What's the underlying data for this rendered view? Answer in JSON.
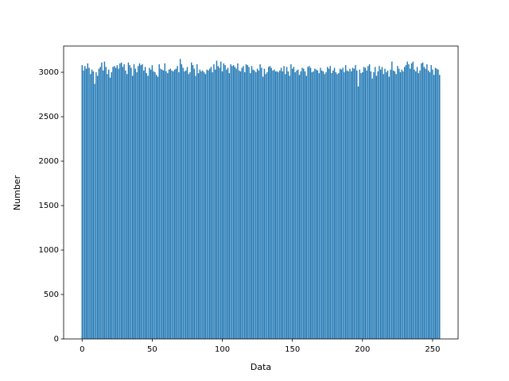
{
  "chart_data": {
    "type": "bar",
    "xlabel": "Data",
    "ylabel": "Number",
    "color": "#1f77b4",
    "x": [
      0,
      1,
      2,
      3,
      4,
      5,
      6,
      7,
      8,
      9,
      10,
      11,
      12,
      13,
      14,
      15,
      16,
      17,
      18,
      19,
      20,
      21,
      22,
      23,
      24,
      25,
      26,
      27,
      28,
      29,
      30,
      31,
      32,
      33,
      34,
      35,
      36,
      37,
      38,
      39,
      40,
      41,
      42,
      43,
      44,
      45,
      46,
      47,
      48,
      49,
      50,
      51,
      52,
      53,
      54,
      55,
      56,
      57,
      58,
      59,
      60,
      61,
      62,
      63,
      64,
      65,
      66,
      67,
      68,
      69,
      70,
      71,
      72,
      73,
      74,
      75,
      76,
      77,
      78,
      79,
      80,
      81,
      82,
      83,
      84,
      85,
      86,
      87,
      88,
      89,
      90,
      91,
      92,
      93,
      94,
      95,
      96,
      97,
      98,
      99,
      100,
      101,
      102,
      103,
      104,
      105,
      106,
      107,
      108,
      109,
      110,
      111,
      112,
      113,
      114,
      115,
      116,
      117,
      118,
      119,
      120,
      121,
      122,
      123,
      124,
      125,
      126,
      127,
      128,
      129,
      130,
      131,
      132,
      133,
      134,
      135,
      136,
      137,
      138,
      139,
      140,
      141,
      142,
      143,
      144,
      145,
      146,
      147,
      148,
      149,
      150,
      151,
      152,
      153,
      154,
      155,
      156,
      157,
      158,
      159,
      160,
      161,
      162,
      163,
      164,
      165,
      166,
      167,
      168,
      169,
      170,
      171,
      172,
      173,
      174,
      175,
      176,
      177,
      178,
      179,
      180,
      181,
      182,
      183,
      184,
      185,
      186,
      187,
      188,
      189,
      190,
      191,
      192,
      193,
      194,
      195,
      196,
      197,
      198,
      199,
      200,
      201,
      202,
      203,
      204,
      205,
      206,
      207,
      208,
      209,
      210,
      211,
      212,
      213,
      214,
      215,
      216,
      217,
      218,
      219,
      220,
      221,
      222,
      223,
      224,
      225,
      226,
      227,
      228,
      229,
      230,
      231,
      232,
      233,
      234,
      235,
      236,
      237,
      238,
      239,
      240,
      241,
      242,
      243,
      244,
      245,
      246,
      247,
      248,
      249,
      250,
      251,
      252,
      253,
      254,
      255
    ],
    "values": [
      3080,
      3020,
      3070,
      3040,
      3100,
      3050,
      2980,
      3030,
      3010,
      2870,
      3000,
      2960,
      3040,
      3060,
      3110,
      3020,
      3120,
      3060,
      2980,
      3030,
      2940,
      3000,
      3060,
      3070,
      3050,
      3080,
      3040,
      3100,
      3110,
      3060,
      3090,
      3020,
      2980,
      3110,
      3080,
      3050,
      2960,
      3090,
      3040,
      3000,
      3070,
      3100,
      3080,
      3090,
      3020,
      3060,
      2990,
      2960,
      3050,
      3030,
      3080,
      3010,
      3000,
      2970,
      2950,
      3090,
      3040,
      3030,
      3020,
      3100,
      3010,
      2990,
      3030,
      3040,
      3020,
      3010,
      3030,
      3040,
      3070,
      3000,
      3150,
      3090,
      3050,
      3010,
      3020,
      3060,
      2980,
      3000,
      3110,
      3080,
      3040,
      2960,
      3090,
      2990,
      3030,
      3010,
      3020,
      3000,
      2980,
      3030,
      3020,
      3040,
      3060,
      3000,
      3090,
      3030,
      3130,
      3070,
      3050,
      3120,
      3010,
      3100,
      3080,
      3030,
      3050,
      2990,
      3090,
      3070,
      3080,
      3060,
      3040,
      3100,
      3020,
      3010,
      3050,
      3070,
      3000,
      3090,
      3080,
      3060,
      2990,
      3070,
      3030,
      3020,
      3000,
      3040,
      3020,
      3090,
      3050,
      2950,
      3040,
      2980,
      3000,
      3060,
      3070,
      3050,
      3020,
      3030,
      3010,
      3010,
      3000,
      3020,
      3050,
      3010,
      3070,
      2980,
      3060,
      3010,
      2960,
      3090,
      3040,
      3060,
      3000,
      3020,
      3030,
      2970,
      3010,
      3050,
      3040,
      3010,
      2960,
      3060,
      3070,
      3050,
      3000,
      3010,
      3040,
      3030,
      3020,
      2990,
      3050,
      3020,
      3010,
      2980,
      3000,
      3060,
      3040,
      3070,
      2990,
      3020,
      3050,
      3000,
      2980,
      2990,
      3040,
      3030,
      3050,
      3000,
      3080,
      3020,
      3010,
      3040,
      3010,
      3050,
      3040,
      3080,
      3020,
      2840,
      3030,
      2990,
      3000,
      3060,
      3050,
      3020,
      3070,
      3090,
      3010,
      2930,
      3000,
      3060,
      2960,
      3010,
      3070,
      3030,
      3060,
      2980,
      3040,
      3000,
      3020,
      2950,
      3030,
      3120,
      3020,
      3010,
      2980,
      3070,
      3040,
      3000,
      3030,
      3010,
      3060,
      3080,
      3120,
      3090,
      3040,
      3100,
      3120,
      3030,
      3010,
      3060,
      2990,
      3020,
      3100,
      3110,
      3060,
      3040,
      3090,
      3020,
      3000,
      3080,
      3030,
      2970,
      3050,
      3040,
      3030,
      2970
    ],
    "xlim": [
      -13.19,
      268.19
    ],
    "xticks": [
      0,
      50,
      100,
      150,
      200,
      250
    ],
    "ylim": [
      0,
      3295
    ],
    "yticks": [
      0,
      500,
      1000,
      1500,
      2000,
      2500,
      3000
    ]
  }
}
